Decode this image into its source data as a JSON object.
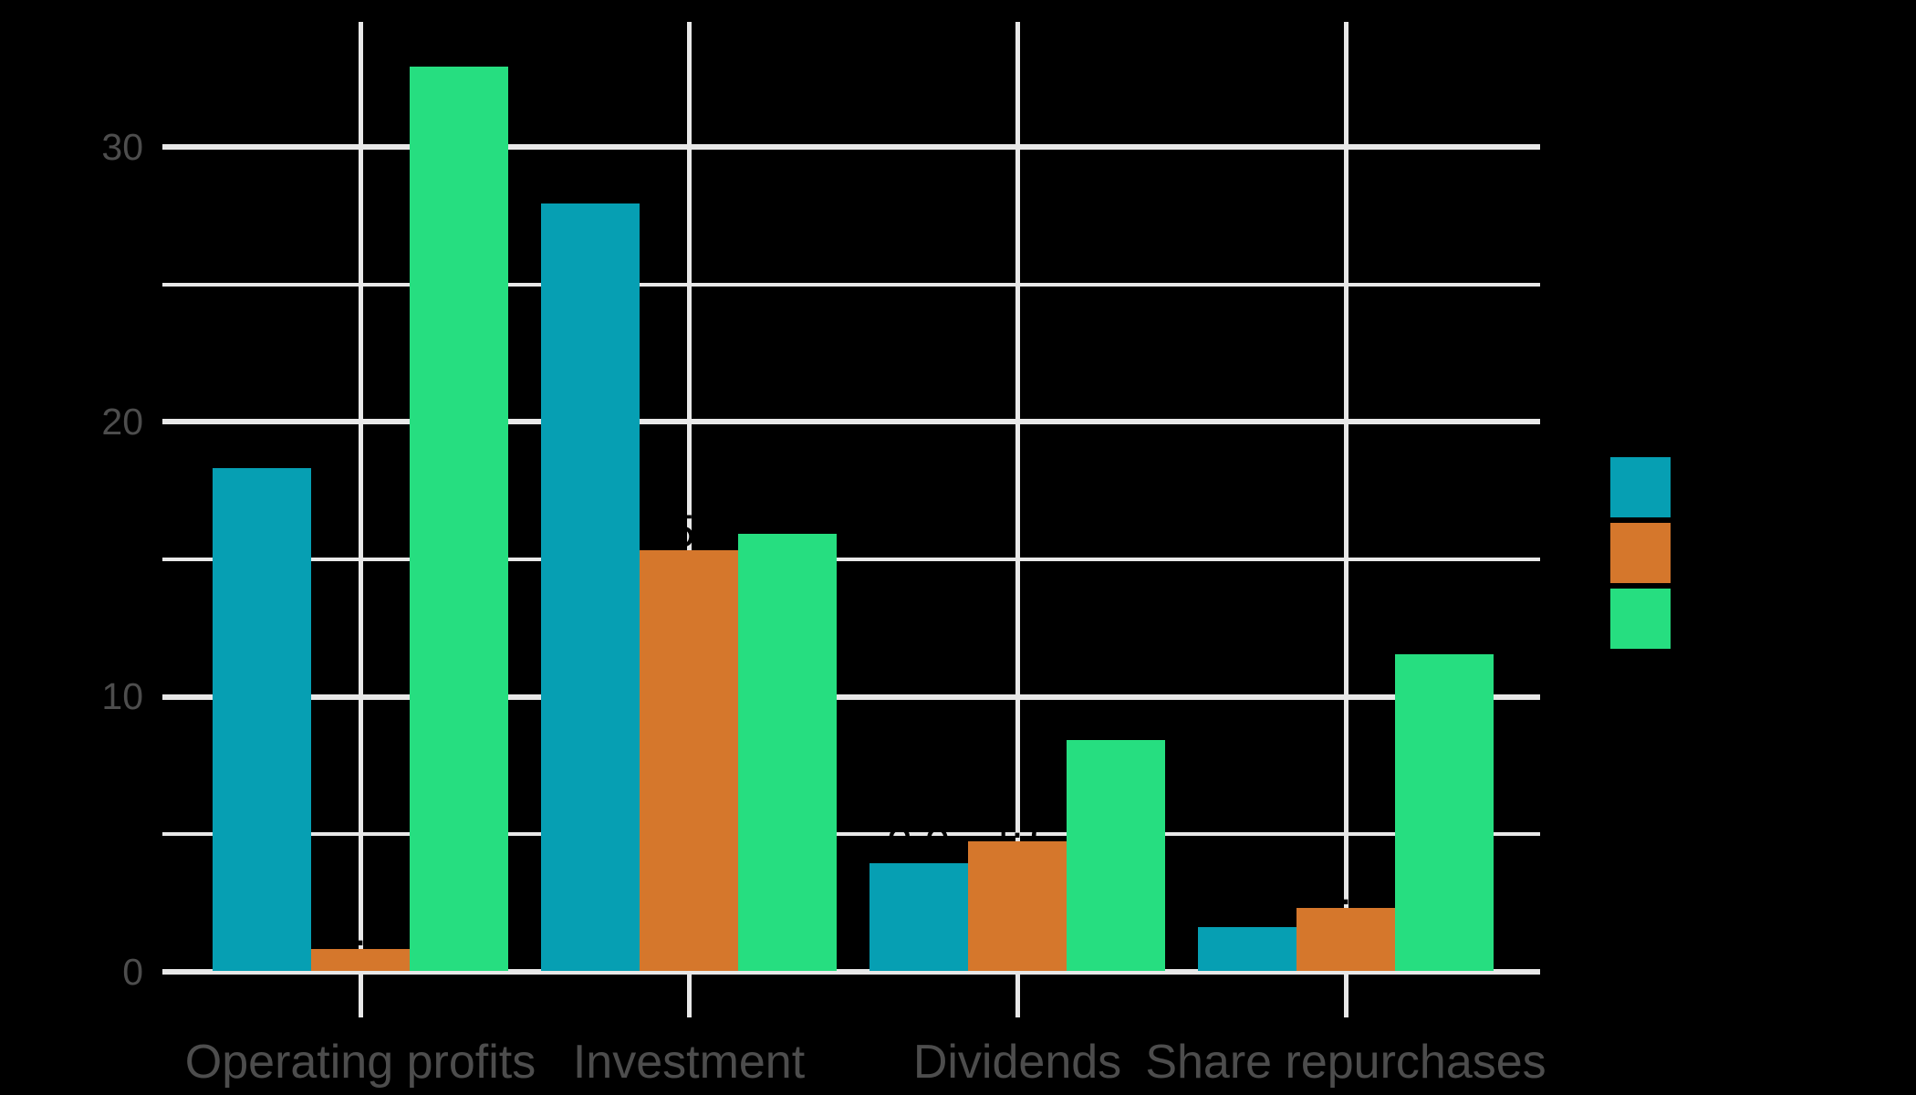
{
  "chart_data": {
    "type": "bar",
    "layout": "grouped",
    "background_color": "#000000",
    "gridline_color": "#e8e8e8",
    "axis_text_color": "#4d4d4d",
    "bar_value_label_color": "#000000",
    "grid": true,
    "categories": [
      "Operating profits",
      "Investment",
      "Dividends",
      "Share repurchases"
    ],
    "series": [
      {
        "name": "teal",
        "color": "#069fb3",
        "values": [
          18.3,
          27.9,
          3.9,
          1.6
        ]
      },
      {
        "name": "orange",
        "color": "#d5772c",
        "values": [
          0.8,
          15.3,
          4.7,
          2.3
        ]
      },
      {
        "name": "green",
        "color": "#26de80",
        "values": [
          32.9,
          15.9,
          8.4,
          11.5
        ]
      }
    ],
    "bar_value_labels": [
      "18.3",
      "27.9",
      "3.9",
      "1.6",
      "0.8",
      "15.3",
      "4.7",
      "2.3",
      "32.9",
      "15.9",
      "8.4",
      "11.5"
    ],
    "xlabel": "",
    "ylabel": "",
    "y_axis": {
      "tick_labels": [
        "0",
        "10",
        "20",
        "30"
      ],
      "major_ticks": [
        0,
        10,
        20,
        30
      ],
      "minor_gridlines": [
        5,
        15,
        25
      ],
      "range": [
        0,
        34.5
      ]
    },
    "legend": {
      "position": "right",
      "labels_visible": false,
      "swatch_colors": [
        "#069fb3",
        "#d5772c",
        "#26de80"
      ]
    }
  }
}
